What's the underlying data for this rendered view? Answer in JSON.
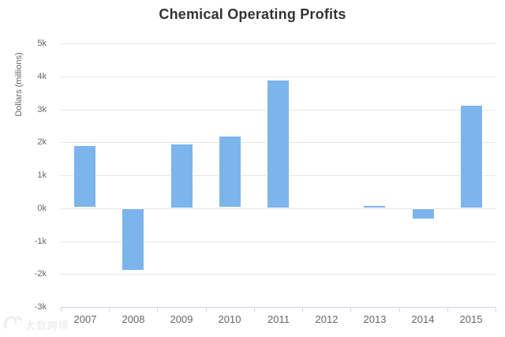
{
  "chart_data": {
    "type": "bar",
    "title": "Chemical Operating Profits",
    "xlabel": "",
    "ylabel": "Dollars (millions)",
    "categories": [
      "2007",
      "2008",
      "2009",
      "2010",
      "2011",
      "2012",
      "2013",
      "2014",
      "2015"
    ],
    "values": [
      1900,
      -1900,
      1960,
      2190,
      3900,
      50,
      90,
      -330,
      3130
    ],
    "ylim": [
      -3000,
      5000
    ],
    "y_ticks": [
      {
        "v": 5000,
        "label": "5k"
      },
      {
        "v": 4000,
        "label": "4k"
      },
      {
        "v": 3000,
        "label": "3k"
      },
      {
        "v": 2000,
        "label": "2k"
      },
      {
        "v": 1000,
        "label": "1k"
      },
      {
        "v": 0,
        "label": "0k"
      },
      {
        "v": -1000,
        "label": "-1k"
      },
      {
        "v": -2000,
        "label": "-2k"
      },
      {
        "v": -3000,
        "label": "-3k"
      }
    ],
    "grid": true,
    "legend": "none",
    "colors": {
      "bar": "#7cb5ec",
      "bar_border": "#ffffff",
      "grid": "#e6e6e6",
      "axis_line": "#ccd6eb",
      "title": "#333333",
      "labels": "#666666",
      "watermark": "#d8d8d8"
    }
  },
  "watermark": {
    "text": "大数跨境"
  }
}
